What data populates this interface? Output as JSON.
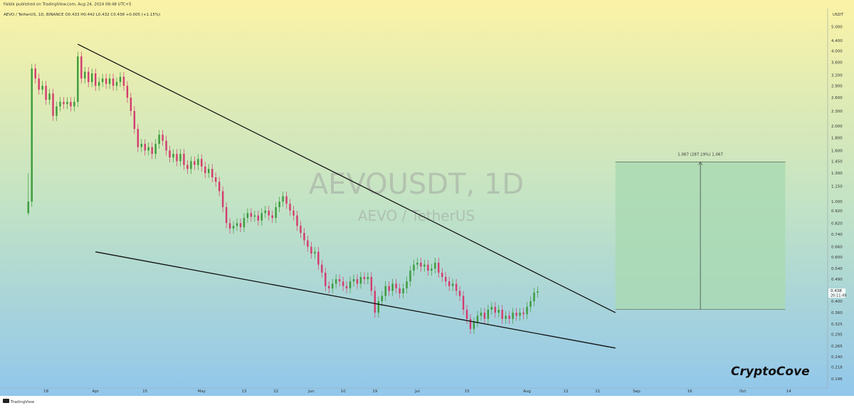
{
  "header": {
    "published_text": "Falbik published on TradingView.com, Aug 24, 2024 08:48 UTC+5",
    "symbol_line": "AEVO / TetherUS, 1D, BINANCE  O0.433  H0.442  L0.432  C0.438  +0.005 (+1.15%)"
  },
  "footer": {
    "logo_text": "TradingView"
  },
  "watermark": {
    "line1": "AEVOUSDT, 1D",
    "line2": "AEVO / TetherUS"
  },
  "brand": "CryptoCove",
  "colors": {
    "bg_top": "#fbf3a6",
    "bg_mid": "#c2e3c5",
    "bg_bottom": "#8ec5ee",
    "up": "#3a9b3a",
    "down": "#d43a6e",
    "projection_fill": "#a9d9b1",
    "trendline": "#111111"
  },
  "chart_data": {
    "type": "candlestick",
    "title": "AEVOUSDT, 1D",
    "y_axis": {
      "unit_label": "USDT",
      "scale": "log",
      "ticks": [
        5.0,
        4.4,
        4.0,
        3.6,
        3.2,
        2.9,
        2.6,
        2.3,
        2.0,
        1.8,
        1.6,
        1.45,
        1.3,
        1.15,
        1.0,
        0.92,
        0.82,
        0.74,
        0.66,
        0.6,
        0.54,
        0.49,
        0.44,
        0.4,
        0.36,
        0.325,
        0.295,
        0.265,
        0.24,
        0.218,
        0.196
      ],
      "tick_labels": [
        "5.000",
        "4.400",
        "4.000",
        "3.600",
        "3.200",
        "2.900",
        "2.600",
        "2.300",
        "2.000",
        "1.800",
        "1.600",
        "1.450",
        "1.300",
        "1.150",
        "1.000",
        "0.920",
        "0.820",
        "0.740",
        "0.660",
        "0.600",
        "0.540",
        "0.490",
        "0.440",
        "0.400",
        "0.360",
        "0.325",
        "0.295",
        "0.265",
        "0.240",
        "0.218",
        "0.196"
      ],
      "range": [
        0.18,
        5.9
      ]
    },
    "x_axis": {
      "range": [
        "2024-03-05",
        "2024-10-25"
      ],
      "ticks": [
        {
          "date": "2024-03-18",
          "label": "18"
        },
        {
          "date": "2024-04-01",
          "label": "Apr"
        },
        {
          "date": "2024-04-15",
          "label": "15"
        },
        {
          "date": "2024-05-01",
          "label": "May"
        },
        {
          "date": "2024-05-13",
          "label": "13"
        },
        {
          "date": "2024-05-22",
          "label": "22"
        },
        {
          "date": "2024-06-01",
          "label": "Jun"
        },
        {
          "date": "2024-06-10",
          "label": "10"
        },
        {
          "date": "2024-06-19",
          "label": "19"
        },
        {
          "date": "2024-07-01",
          "label": "Jul"
        },
        {
          "date": "2024-07-15",
          "label": "15"
        },
        {
          "date": "2024-08-01",
          "label": "Aug"
        },
        {
          "date": "2024-08-12",
          "label": "12"
        },
        {
          "date": "2024-08-21",
          "label": "21"
        },
        {
          "date": "2024-09-01",
          "label": "Sep"
        },
        {
          "date": "2024-09-16",
          "label": "16"
        },
        {
          "date": "2024-10-01",
          "label": "Oct"
        },
        {
          "date": "2024-10-14",
          "label": "14"
        }
      ]
    },
    "first_date": "2024-03-13",
    "series": [
      {
        "closes": [
          1.0,
          3.4,
          3.1,
          2.8,
          2.9,
          2.55,
          2.7,
          2.2,
          2.4,
          2.5,
          2.45,
          2.5,
          2.4,
          2.5,
          3.8,
          3.1,
          3.3,
          3.0,
          3.25,
          2.9,
          3.0,
          3.1,
          2.95,
          3.1,
          2.9,
          3.0,
          3.15,
          2.9,
          2.6,
          2.3,
          1.95,
          1.65,
          1.7,
          1.6,
          1.65,
          1.55,
          1.7,
          1.85,
          1.75,
          1.6,
          1.5,
          1.55,
          1.45,
          1.55,
          1.4,
          1.35,
          1.45,
          1.4,
          1.48,
          1.38,
          1.3,
          1.35,
          1.25,
          1.2,
          1.1,
          0.95,
          0.82,
          0.78,
          0.8,
          0.82,
          0.79,
          0.86,
          0.9,
          0.87,
          0.88,
          0.84,
          0.9,
          0.92,
          0.88,
          0.86,
          0.95,
          1.0,
          1.05,
          0.98,
          0.92,
          0.88,
          0.8,
          0.75,
          0.7,
          0.66,
          0.62,
          0.63,
          0.56,
          0.52,
          0.46,
          0.45,
          0.47,
          0.49,
          0.48,
          0.46,
          0.45,
          0.48,
          0.49,
          0.47,
          0.5,
          0.49,
          0.5,
          0.44,
          0.36,
          0.4,
          0.42,
          0.46,
          0.44,
          0.47,
          0.45,
          0.43,
          0.45,
          0.48,
          0.53,
          0.56,
          0.57,
          0.55,
          0.56,
          0.53,
          0.54,
          0.57,
          0.52,
          0.5,
          0.48,
          0.46,
          0.47,
          0.44,
          0.42,
          0.37,
          0.34,
          0.31,
          0.33,
          0.35,
          0.36,
          0.34,
          0.37,
          0.38,
          0.36,
          0.37,
          0.34,
          0.35,
          0.34,
          0.36,
          0.35,
          0.36,
          0.355,
          0.38,
          0.4,
          0.433,
          0.438
        ]
      }
    ],
    "trendlines": [
      {
        "from": {
          "date": "2024-03-27",
          "value": 4.25
        },
        "to": {
          "date": "2024-08-26",
          "value": 0.36
        }
      },
      {
        "from": {
          "date": "2024-04-01",
          "value": 0.63
        },
        "to": {
          "date": "2024-08-26",
          "value": 0.26
        }
      }
    ],
    "projection": {
      "start_date": "2024-08-26",
      "end_date": "2024-10-13",
      "from_value": 0.371,
      "to_value": 1.438,
      "label": "1.067 (287.19%) 1.067"
    },
    "last_price": {
      "value": "0.438",
      "countdown": "20:11:49"
    }
  }
}
